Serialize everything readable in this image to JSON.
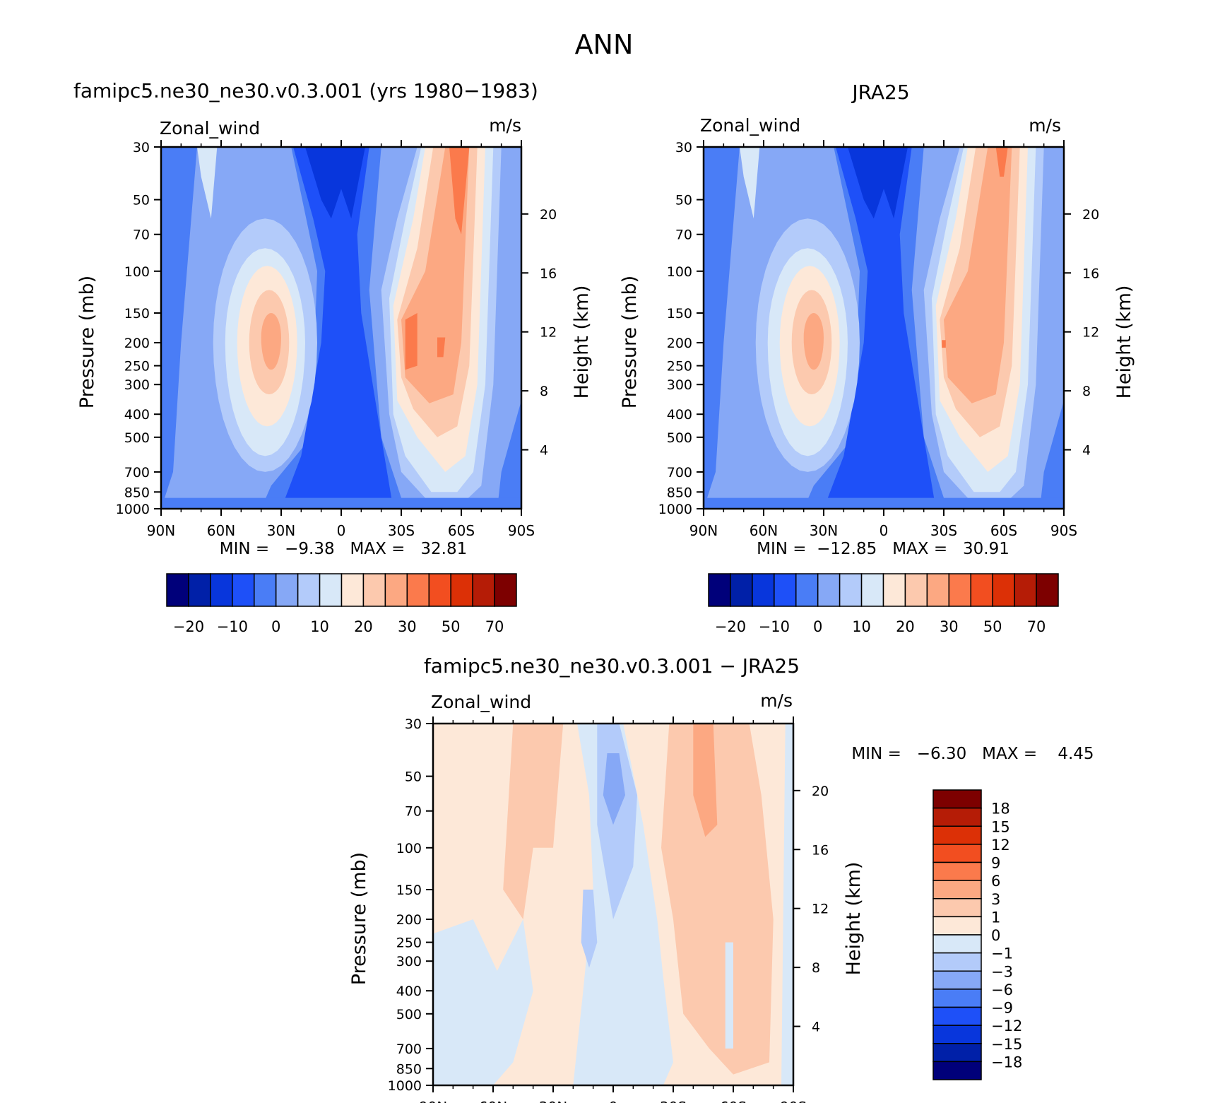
{
  "figure": {
    "title": "ANN"
  },
  "panels": [
    {
      "id": "model",
      "title": "famipc5.ne30_ne30.v0.3.001 (yrs 1980−1983)",
      "variable": "Zonal_wind",
      "units": "m/s",
      "ylabel": "Pressure (mb)",
      "ylabel_right": "Height (km)",
      "stats": "MIN =   −9.38   MAX =   32.81",
      "jet_nh_value": 22,
      "jet_sh_value": 31
    },
    {
      "id": "obs",
      "title": "JRA25",
      "variable": "Zonal_wind",
      "units": "m/s",
      "ylabel": "Pressure (mb)",
      "ylabel_right": "Height (km)",
      "stats": "MIN =  −12.85   MAX =   30.91",
      "jet_nh_value": 21,
      "jet_sh_value": 29
    },
    {
      "id": "diff",
      "title": "famipc5.ne30_ne30.v0.3.001 − JRA25",
      "variable": "Zonal_wind",
      "units": "m/s",
      "ylabel": "Pressure (mb)",
      "ylabel_right": "Height (km)",
      "stats": "MIN =   −6.30   MAX =    4.45"
    }
  ],
  "axes": {
    "x_ticks": [
      "90N",
      "60N",
      "30N",
      "0",
      "30S",
      "60S",
      "90S"
    ],
    "x_values": [
      90,
      60,
      30,
      0,
      -30,
      -60,
      -90
    ],
    "y_ticks": [
      "30",
      "50",
      "70",
      "100",
      "150",
      "200",
      "250",
      "300",
      "400",
      "500",
      "700",
      "850",
      "1000"
    ],
    "y_values": [
      30,
      50,
      70,
      100,
      150,
      200,
      250,
      300,
      400,
      500,
      700,
      850,
      1000
    ],
    "y_scale": "log",
    "height_ticks": [
      "20",
      "16",
      "12",
      "8",
      "4"
    ],
    "height_values": [
      20,
      16,
      12,
      8,
      4
    ]
  },
  "colorbars": {
    "main": {
      "colors": [
        "#00007a",
        "#0020a8",
        "#0836dc",
        "#1e50f8",
        "#4a7df6",
        "#86a8f6",
        "#b3cbfa",
        "#d8e8f8",
        "#fde8d8",
        "#fcc9ae",
        "#fca882",
        "#fb7a4c",
        "#f24e20",
        "#dc3006",
        "#b51c06",
        "#7d0000"
      ],
      "tick_labels": [
        "−20",
        "−10",
        "0",
        "10",
        "20",
        "30",
        "50",
        "70"
      ],
      "orientation": "horizontal"
    },
    "diff": {
      "colors": [
        "#7d0000",
        "#b51c06",
        "#dc3006",
        "#f24e20",
        "#fb7a4c",
        "#fca882",
        "#fcc9ae",
        "#fde8d8",
        "#d8e8f8",
        "#b3cbfa",
        "#86a8f6",
        "#4a7df6",
        "#1e50f8",
        "#0836dc",
        "#0020a8",
        "#00007a"
      ],
      "tick_labels": [
        "18",
        "15",
        "12",
        "9",
        "6",
        "3",
        "1",
        "0",
        "−1",
        "−3",
        "−6",
        "−9",
        "−12",
        "−15",
        "−18"
      ],
      "orientation": "vertical"
    }
  },
  "chart_data": [
    {
      "type": "heatmap",
      "title": "famipc5.ne30_ne30.v0.3.001 (yrs 1980−1983)",
      "xlabel": "",
      "ylabel": "Pressure (mb)",
      "xlim": [
        90,
        -90
      ],
      "ylim": [
        30,
        1000
      ],
      "levels": [
        -20,
        -10,
        0,
        10,
        20,
        30,
        50,
        70
      ],
      "min": -9.38,
      "max": 32.81,
      "units": "m/s"
    },
    {
      "type": "heatmap",
      "title": "JRA25",
      "xlabel": "",
      "ylabel": "Pressure (mb)",
      "xlim": [
        90,
        -90
      ],
      "ylim": [
        30,
        1000
      ],
      "levels": [
        -20,
        -10,
        0,
        10,
        20,
        30,
        50,
        70
      ],
      "min": -12.85,
      "max": 30.91,
      "units": "m/s"
    },
    {
      "type": "heatmap",
      "title": "famipc5.ne30_ne30.v0.3.001 − JRA25",
      "xlabel": "",
      "ylabel": "Pressure (mb)",
      "xlim": [
        90,
        -90
      ],
      "ylim": [
        30,
        1000
      ],
      "levels": [
        -18,
        -15,
        -12,
        -9,
        -6,
        -3,
        -1,
        0,
        1,
        3,
        6,
        9,
        12,
        15,
        18
      ],
      "min": -6.3,
      "max": 4.45,
      "units": "m/s"
    }
  ]
}
